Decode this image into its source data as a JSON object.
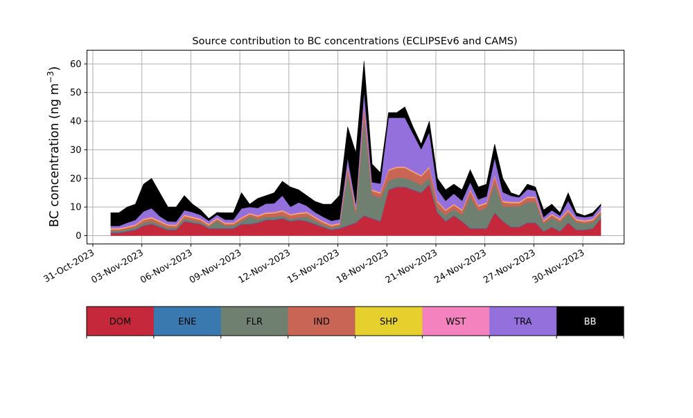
{
  "chart_data": {
    "type": "area",
    "stacked": true,
    "title": "Source contribution to BC concentrations (ECLIPSEv6 and CAMS)",
    "ylabel": "BC concentration (ng m",
    "ylabel_sup": "−3",
    "ylabel_close": ")",
    "xlabel": "",
    "ylim": [
      -2.9,
      64.8
    ],
    "yticks": [
      0,
      10,
      20,
      30,
      40,
      50,
      60
    ],
    "x_origin": "31-Oct-2023",
    "xlim_days": [
      -0.36,
      32.52
    ],
    "xticks_days": [
      0,
      3,
      6,
      9,
      12,
      15,
      18,
      21,
      24,
      27,
      30
    ],
    "xtick_labels": [
      "31-Oct-2023",
      "03-Nov-2023",
      "06-Nov-2023",
      "09-Nov-2023",
      "12-Nov-2023",
      "15-Nov-2023",
      "18-Nov-2023",
      "21-Nov-2023",
      "24-Nov-2023",
      "27-Nov-2023",
      "30-Nov-2023"
    ],
    "grid": true,
    "x_start_day": 1.1,
    "x_step_day": 0.5,
    "legend_placement": "bottom-colorbar",
    "series": [
      {
        "name": "DOM",
        "color": "#c5283a",
        "values": [
          1,
          1,
          1.5,
          2,
          3.5,
          4,
          3,
          2,
          2,
          5,
          4.5,
          4,
          2.5,
          2.5,
          2.5,
          2.5,
          4,
          4,
          4.5,
          5.5,
          5.5,
          6,
          5,
          5.5,
          5,
          4,
          3,
          2,
          2.5,
          3.5,
          4.5,
          7,
          6,
          5,
          16,
          17,
          17,
          16,
          15,
          18,
          8,
          5,
          7,
          5,
          2.5,
          2.5,
          2.5,
          8,
          5,
          3,
          3,
          4.5,
          4.5,
          1.5,
          3,
          1.5,
          4.5,
          2,
          2,
          2.5,
          6
        ]
      },
      {
        "name": "ENE",
        "color": "#3a78b0",
        "values": [
          0.2,
          0.2,
          0.2,
          0.2,
          0.2,
          0.2,
          0.2,
          0.2,
          0.2,
          0.2,
          0.2,
          0.2,
          0.2,
          0.2,
          0.2,
          0.2,
          0.2,
          0.2,
          0.2,
          0.2,
          0.2,
          0.2,
          0.2,
          0.2,
          0.2,
          0.2,
          0.2,
          0.2,
          0.2,
          0.2,
          0.2,
          0.2,
          0.2,
          0.2,
          0.2,
          0.2,
          0.2,
          0.2,
          0.2,
          0.2,
          0.2,
          0.2,
          0.2,
          0.2,
          0.2,
          0.2,
          0.2,
          0.2,
          0.2,
          0.2,
          0.2,
          0.2,
          0.2,
          0.2,
          0.2,
          0.2,
          0.2,
          0.2,
          0.2,
          0.2,
          0.2
        ]
      },
      {
        "name": "FLR",
        "color": "#6f8070",
        "values": [
          0.5,
          0.5,
          0.5,
          0.6,
          0.8,
          0.8,
          0.6,
          0.5,
          0.5,
          0.7,
          0.6,
          0.5,
          0.4,
          2.5,
          0.8,
          0.8,
          0.8,
          2.5,
          1,
          0.8,
          0.8,
          0.8,
          0.6,
          0.6,
          1.5,
          1,
          0.6,
          0.5,
          0.6,
          18,
          3,
          34,
          8,
          8,
          3,
          3,
          3,
          3,
          2.5,
          2,
          1.5,
          2,
          2,
          2,
          11,
          6,
          7,
          10,
          5,
          7,
          7,
          7,
          7,
          2.5,
          3,
          3,
          3,
          2.5,
          2,
          2,
          1.5
        ]
      },
      {
        "name": "IND",
        "color": "#c96555",
        "values": [
          0.5,
          0.5,
          0.6,
          0.7,
          1,
          1.1,
          1,
          0.8,
          0.7,
          1,
          0.9,
          0.8,
          0.6,
          0.6,
          0.6,
          0.6,
          1,
          0.8,
          1,
          1.2,
          1.3,
          1.5,
          1.3,
          1.3,
          1.2,
          1,
          0.8,
          0.7,
          0.7,
          2,
          1.5,
          4,
          1.5,
          1.5,
          3.5,
          3.5,
          3.5,
          3,
          3,
          3.5,
          2,
          1.5,
          1.5,
          1.5,
          2,
          1.5,
          1.5,
          2.5,
          1.5,
          1.2,
          1.2,
          1.5,
          1.5,
          0.8,
          1,
          0.8,
          1,
          0.7,
          0.7,
          0.7,
          0.8
        ]
      },
      {
        "name": "SHP",
        "color": "#e6d02e",
        "values": [
          0.2,
          0.2,
          0.2,
          0.2,
          0.2,
          0.2,
          0.2,
          0.2,
          0.2,
          0.2,
          0.2,
          0.2,
          0.2,
          0.2,
          0.2,
          0.2,
          0.2,
          0.2,
          0.2,
          0.2,
          0.2,
          0.2,
          0.2,
          0.2,
          0.2,
          0.2,
          0.2,
          0.2,
          0.2,
          0.2,
          0.2,
          0.2,
          0.2,
          0.2,
          0.2,
          0.2,
          0.2,
          0.2,
          0.2,
          0.2,
          0.2,
          0.2,
          0.2,
          0.2,
          0.2,
          0.2,
          0.2,
          0.2,
          0.2,
          0.2,
          0.2,
          0.2,
          0.2,
          0.2,
          0.2,
          0.2,
          0.2,
          0.2,
          0.2,
          0.2,
          0.2
        ]
      },
      {
        "name": "WST",
        "color": "#f382bf",
        "values": [
          0.3,
          0.3,
          0.3,
          0.3,
          0.3,
          0.3,
          0.3,
          0.3,
          0.3,
          0.3,
          0.3,
          0.3,
          0.3,
          0.3,
          0.3,
          0.3,
          0.3,
          0.3,
          0.3,
          0.3,
          0.3,
          0.3,
          0.3,
          0.3,
          0.3,
          0.3,
          0.3,
          0.3,
          0.3,
          0.3,
          0.3,
          0.3,
          0.3,
          0.3,
          0.3,
          0.3,
          0.3,
          0.3,
          0.3,
          0.3,
          0.3,
          0.3,
          0.3,
          0.3,
          0.3,
          0.3,
          0.3,
          0.3,
          0.3,
          0.3,
          0.3,
          0.3,
          0.3,
          0.3,
          0.3,
          0.3,
          0.3,
          0.3,
          0.3,
          0.3,
          0.3
        ]
      },
      {
        "name": "TRA",
        "color": "#9370db",
        "values": [
          0.7,
          0.7,
          1.2,
          1.5,
          2.5,
          3,
          1.5,
          1,
          1,
          1.5,
          1.5,
          1.2,
          1,
          1,
          1,
          1,
          3,
          2,
          2.5,
          3,
          3,
          5,
          2.5,
          3.5,
          2,
          1.5,
          1.5,
          1.3,
          1.2,
          3,
          1.5,
          5,
          2.5,
          3,
          18,
          17,
          17,
          13,
          9,
          12,
          4,
          3,
          3.5,
          3,
          2.5,
          2,
          2,
          6,
          3,
          2,
          1.5,
          2.5,
          2,
          1,
          1.2,
          1,
          3,
          1,
          1,
          1,
          1.5
        ]
      },
      {
        "name": "BB",
        "color": "#000000",
        "values": [
          4.6,
          4.6,
          5.5,
          5.5,
          9.5,
          10.4,
          8.2,
          5,
          5.1,
          5.1,
          2.8,
          1.8,
          0.8,
          0.8,
          2.4,
          2.4,
          5.5,
          1,
          3.3,
          2.8,
          3.7,
          5,
          6.9,
          4.4,
          3.6,
          3.8,
          4.4,
          5.8,
          8.3,
          10.8,
          17.8,
          10.3,
          6.3,
          3.8,
          1.8,
          1.8,
          3.8,
          2.3,
          1.8,
          3.8,
          3.8,
          3.8,
          3.3,
          3.8,
          4.3,
          4.3,
          4.3,
          4.8,
          4.8,
          1.1,
          0.6,
          1.8,
          1.3,
          2.5,
          2.1,
          1,
          2.8,
          1.1,
          0.6,
          1.1,
          0.5
        ]
      }
    ]
  }
}
